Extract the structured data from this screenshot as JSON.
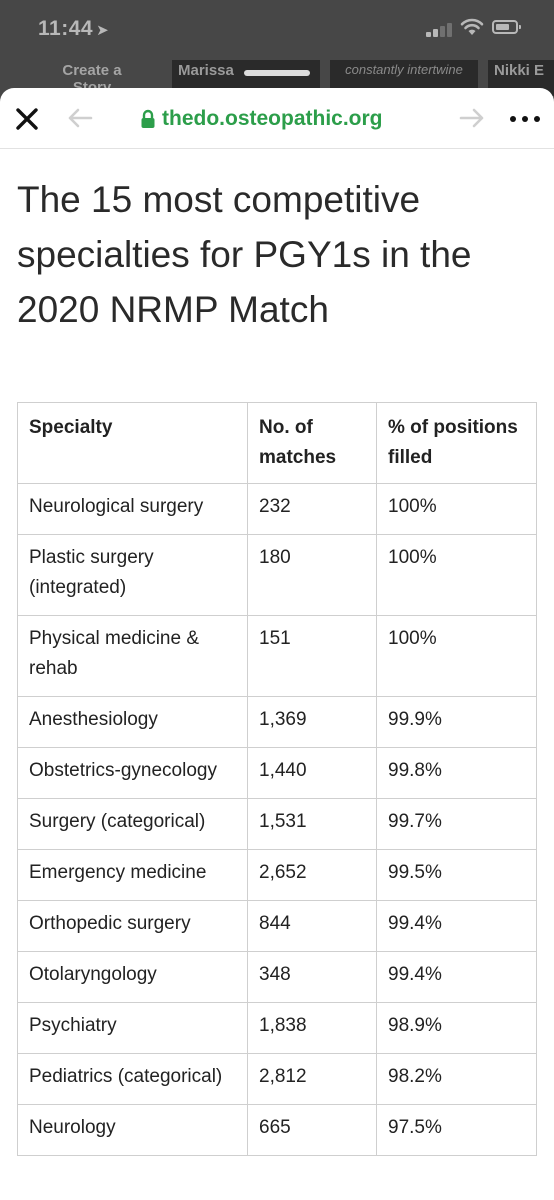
{
  "status_bar": {
    "time": "11:44",
    "location_icon": "location-arrow-icon",
    "signal_icon": "cellular-signal-icon",
    "wifi_icon": "wifi-icon",
    "battery_icon": "battery-icon"
  },
  "background_app": {
    "cards": [
      "Create a Story",
      "Marissa",
      "constantly intertwine",
      "Nikki E"
    ]
  },
  "browser": {
    "url": "thedo.osteopathic.org",
    "close_icon": "close-icon",
    "back_icon": "arrow-left-icon",
    "forward_icon": "arrow-right-icon",
    "lock_icon": "lock-icon",
    "more_icon": "more-icon"
  },
  "article": {
    "title": "The 15 most competitive specialties for PGY1s in the 2020 NRMP Match",
    "table": {
      "headers": [
        "Specialty",
        "No. of matches",
        "% of positions filled"
      ],
      "rows": [
        [
          "Neurological surgery",
          "232",
          "100%"
        ],
        [
          "Plastic surgery (integrated)",
          "180",
          "100%"
        ],
        [
          "Physical medicine & rehab",
          "151",
          "100%"
        ],
        [
          "Anesthesiology",
          "1,369",
          "99.9%"
        ],
        [
          "Obstetrics-gynecology",
          "1,440",
          "99.8%"
        ],
        [
          "Surgery (categorical)",
          "1,531",
          "99.7%"
        ],
        [
          "Emergency medicine",
          "2,652",
          "99.5%"
        ],
        [
          "Orthopedic surgery",
          "844",
          "99.4%"
        ],
        [
          "Otolaryngology",
          "348",
          "99.4%"
        ],
        [
          "Psychiatry",
          "1,838",
          "98.9%"
        ],
        [
          "Pediatrics (categorical)",
          "2,812",
          "98.2%"
        ],
        [
          "Neurology",
          "665",
          "97.5%"
        ]
      ]
    }
  }
}
